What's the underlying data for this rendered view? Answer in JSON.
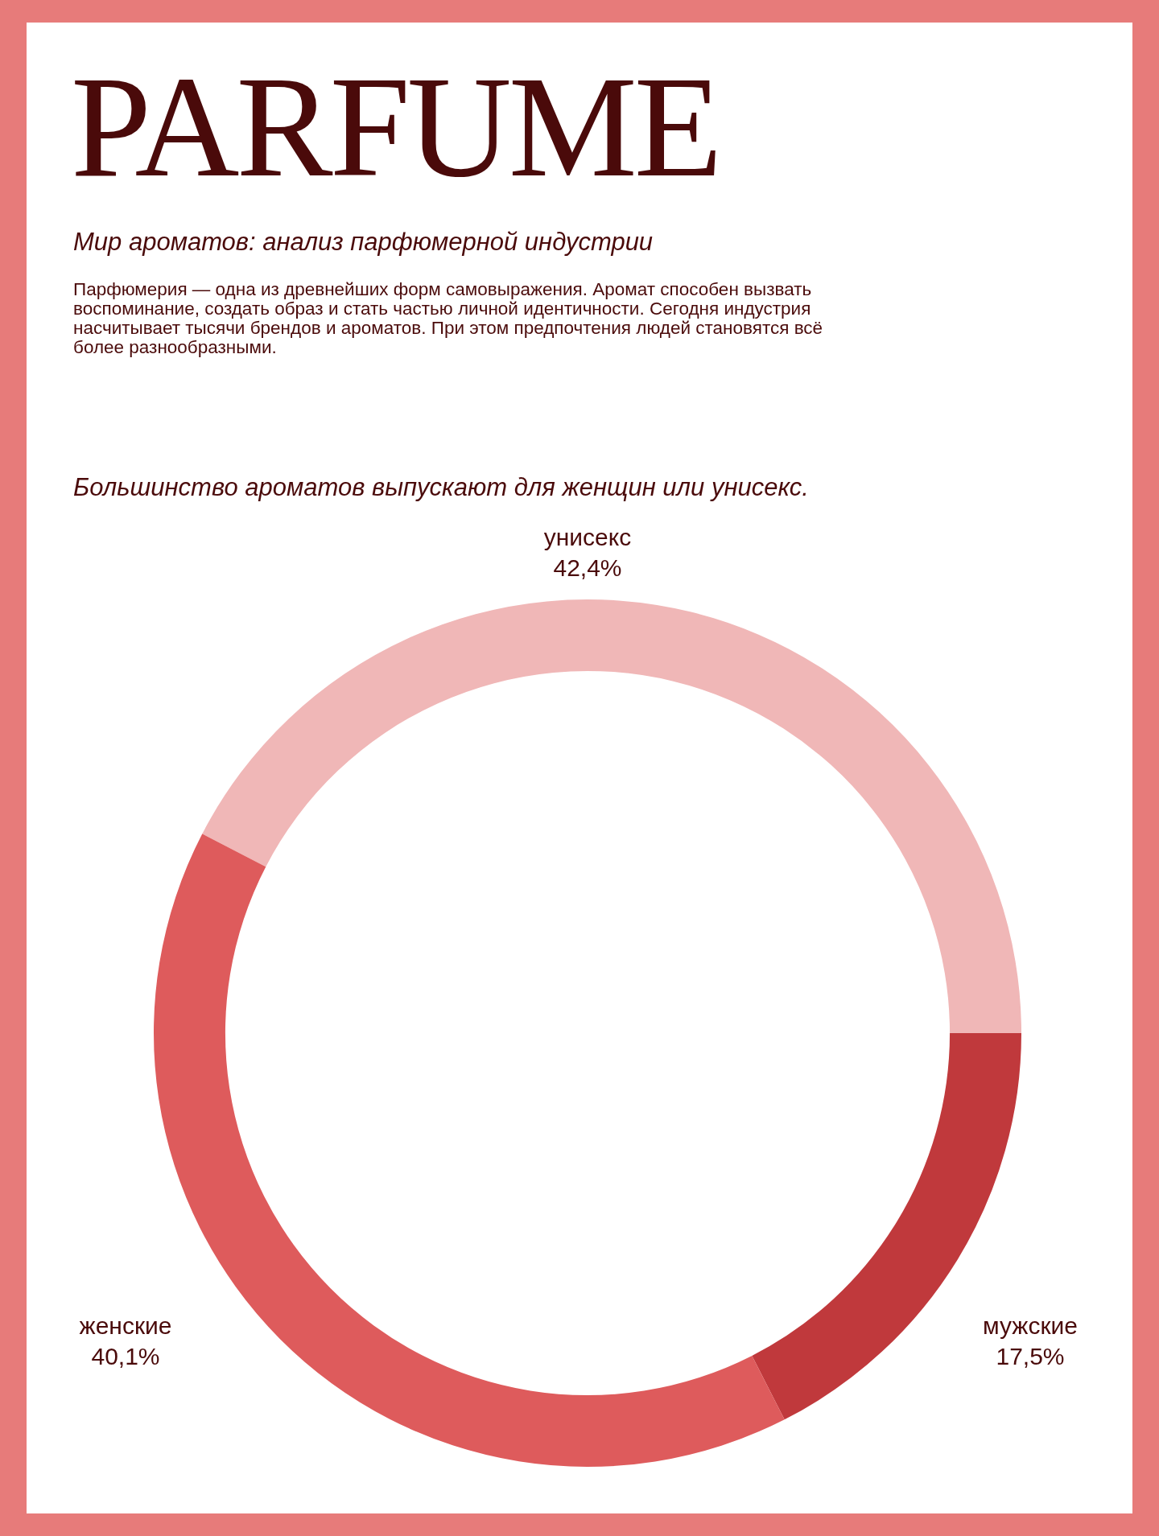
{
  "chart_data": {
    "type": "donut",
    "title": "PARFUME",
    "subtitle": "Мир ароматов: анализ парфюмерной индустрии",
    "annotations": [
      "Парфюмерия — одна из древнейших форм самовыражения. Аромат способен вызвать воспоминание, создать образ и стать частью личной идентичности. Сегодня индустрия насчитывает тысячи брендов и ароматов. При этом предпочтения людей становятся всё более разнообразными.",
      "Большинство ароматов выпускают для женщин или унисекс."
    ],
    "categories": [
      "унисекс",
      "мужские",
      "женские"
    ],
    "values": [
      42.4,
      17.5,
      40.1
    ],
    "value_labels": [
      "42,4%",
      "17,5%",
      "40,1%"
    ],
    "colors": [
      "#f0b7b7",
      "#c0393c",
      "#de5b5c"
    ],
    "legend": false
  }
}
